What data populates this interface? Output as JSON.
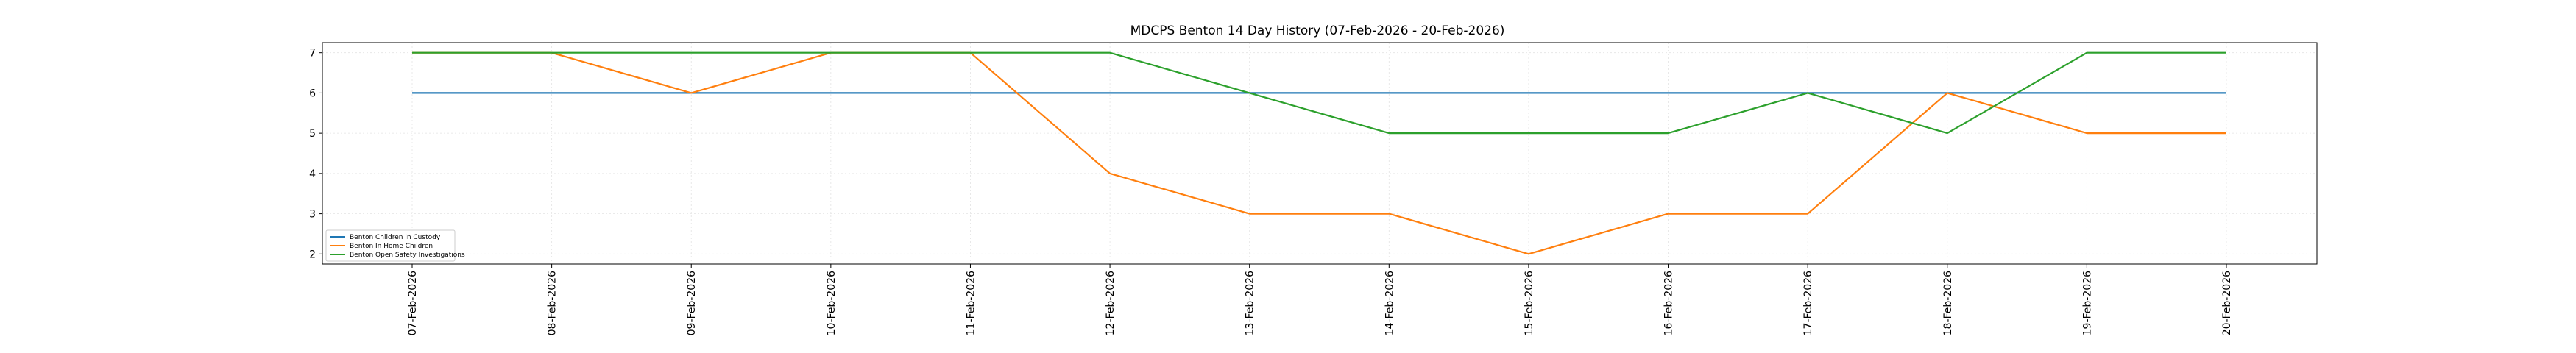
{
  "chart_data": {
    "type": "line",
    "title": "MDCPS Benton 14 Day History (07-Feb-2026 - 20-Feb-2026)",
    "xlabel": "",
    "ylabel": "",
    "categories": [
      "07-Feb-2026",
      "08-Feb-2026",
      "09-Feb-2026",
      "10-Feb-2026",
      "11-Feb-2026",
      "12-Feb-2026",
      "13-Feb-2026",
      "14-Feb-2026",
      "15-Feb-2026",
      "16-Feb-2026",
      "17-Feb-2026",
      "18-Feb-2026",
      "19-Feb-2026",
      "20-Feb-2026"
    ],
    "yticks": [
      "2",
      "3",
      "4",
      "5",
      "6",
      "7"
    ],
    "ylim": [
      1.75,
      7.25
    ],
    "grid": true,
    "legend_position": "lower-left",
    "series": [
      {
        "name": "Benton Children in Custody",
        "color": "#1f77b4",
        "values": [
          6,
          6,
          6,
          6,
          6,
          6,
          6,
          6,
          6,
          6,
          6,
          6,
          6,
          6
        ]
      },
      {
        "name": "Benton In Home Children",
        "color": "#ff7f0e",
        "values": [
          7,
          7,
          6,
          7,
          7,
          4,
          3,
          3,
          2,
          3,
          3,
          6,
          5,
          5
        ]
      },
      {
        "name": "Benton Open Safety Investigations",
        "color": "#2ca02c",
        "values": [
          7,
          7,
          7,
          7,
          7,
          7,
          6,
          5,
          5,
          5,
          6,
          5,
          7,
          7
        ]
      }
    ]
  }
}
